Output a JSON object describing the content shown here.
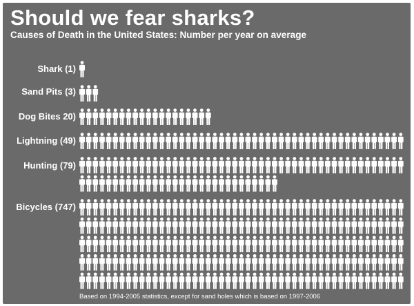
{
  "chart_data": {
    "type": "pictogram",
    "title": "Should we fear sharks?",
    "subtitle": "Causes of Death in the United States: Number per year on average",
    "categories": [
      "Shark (1)",
      "Sand Pits (3)",
      "Dog Bites  20)",
      "Lightning (49)",
      "Hunting (79)",
      "Bicycles (747)"
    ],
    "values": [
      1,
      3,
      20,
      49,
      79,
      747
    ],
    "icon": "person-icon",
    "colors": {
      "background": "#6a6a6a",
      "figure": "#ffffff",
      "text": "#ffffff"
    },
    "footnote": "Based on 1994-2005 statistics, except for sand holes which is based on 1997-2006"
  }
}
